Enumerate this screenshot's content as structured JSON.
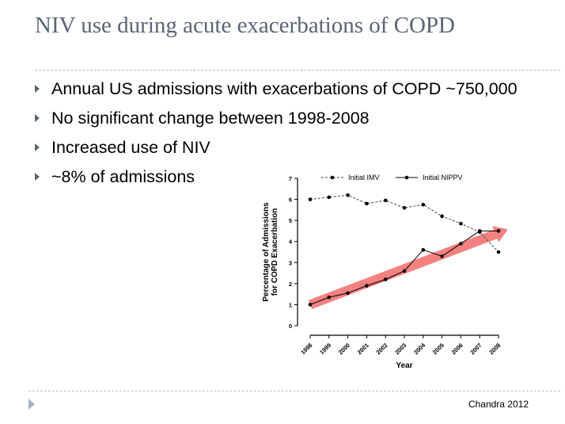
{
  "slide": {
    "title": "NIV use during acute exacerbations of COPD",
    "bullets": [
      "Annual US admissions with exacerbations of COPD ~750,000",
      "No significant change between 1998-2008",
      "Increased use of NIV",
      "~8% of admissions"
    ],
    "citation": "Chandra 2012"
  },
  "colors": {
    "title": "#5a6475",
    "trend_arrow": "#f26b6b",
    "rule": "#b8bcc4"
  },
  "chart_data": {
    "type": "line",
    "x": [
      "1998",
      "1999",
      "2000",
      "2001",
      "2002",
      "2003",
      "2004",
      "2005",
      "2006",
      "2007",
      "2008"
    ],
    "series": [
      {
        "name": "Initial IMV",
        "style": "dashed",
        "values": [
          6.0,
          6.1,
          6.2,
          5.8,
          5.95,
          5.6,
          5.75,
          5.2,
          4.85,
          4.45,
          3.5
        ]
      },
      {
        "name": "Initial NIPPV",
        "style": "solid",
        "values": [
          1.0,
          1.35,
          1.55,
          1.9,
          2.2,
          2.6,
          3.6,
          3.3,
          3.9,
          4.5,
          4.5
        ]
      }
    ],
    "xlabel": "Year",
    "ylabel": "Percentage of Admissions for COPD Exacerbation",
    "ylabel_lines": [
      "Percentage of Admissions",
      "for COPD Exacerbation"
    ],
    "ylim": [
      0,
      7
    ],
    "yticks": [
      0,
      1,
      2,
      3,
      4,
      5,
      6,
      7
    ],
    "legend": "top",
    "grid": false,
    "annotation": "increasing trend arrow",
    "trend_arrow": {
      "from": [
        "1998",
        1.0
      ],
      "to": [
        "2008",
        4.5
      ]
    }
  }
}
